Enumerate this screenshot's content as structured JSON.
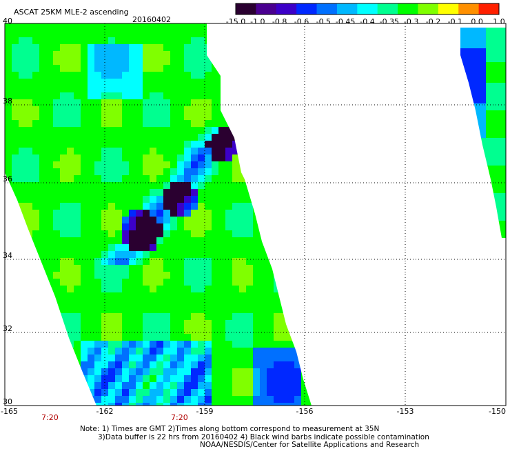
{
  "header": {
    "title": "ASCAT 25KM MLE-2 ascending",
    "date": "20160402"
  },
  "colorbar": {
    "labels": [
      "-15.0",
      "-1.0",
      "-0.8",
      "-0.6",
      "-0.5",
      "-0.45",
      "-0.4",
      "-0.35",
      "-0.3",
      "-0.2",
      "-0.1",
      "0.0",
      "1.0"
    ],
    "colors": [
      "#2a0030",
      "#4a0090",
      "#3c00c8",
      "#0028ff",
      "#0070ff",
      "#00b8ff",
      "#00ffff",
      "#00ff90",
      "#00ff00",
      "#80ff00",
      "#ffff00",
      "#ff9000",
      "#ff2000"
    ]
  },
  "map": {
    "lat_labels": [
      "40",
      "38",
      "36",
      "34",
      "32",
      "30"
    ],
    "lon_labels": [
      "-165",
      "-162",
      "-159",
      "-156",
      "-153",
      "-150"
    ],
    "time_labels": [
      "7:20",
      "7:20"
    ]
  },
  "notes": {
    "line1": "Note: 1) Times are GMT 2)Times along bottom correspond to measurement at 35N",
    "line2": "3)Data buffer is 22 hrs from 20160402 4) Black wind barbs indicate possible contamination",
    "line3": "NOAA/NESDIS/Center for Satellite Applications and Research"
  }
}
